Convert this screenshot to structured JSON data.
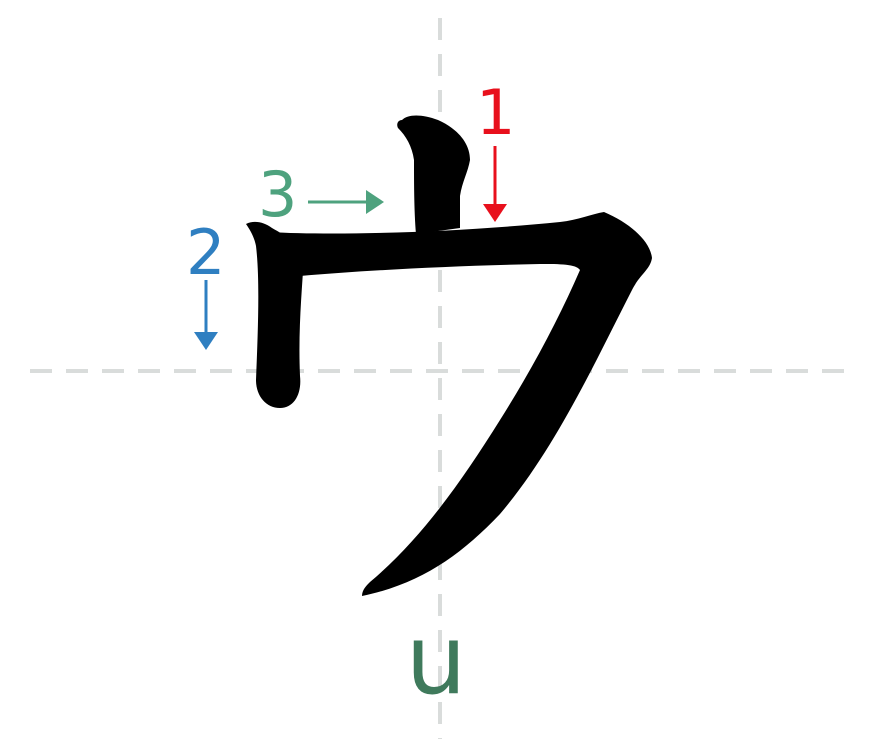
{
  "character": {
    "glyph_name": "katakana-u",
    "romaji": "u",
    "romaji_color": "#3f7a5c",
    "ink_color": "#000000"
  },
  "guides": {
    "color": "#d9dcdb",
    "style": "dashed"
  },
  "strokes": [
    {
      "number": "1",
      "direction": "down",
      "color": "#e8101c"
    },
    {
      "number": "2",
      "direction": "down",
      "color": "#2f7fc1"
    },
    {
      "number": "3",
      "direction": "right",
      "color": "#4ea27e"
    }
  ]
}
